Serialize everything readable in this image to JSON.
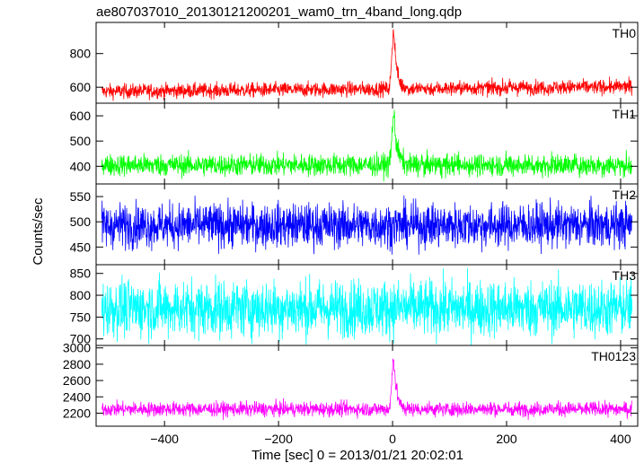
{
  "chart_data": {
    "type": "line",
    "title": "ae807037010_20130121200201_wam0_trn_4band_long.qdp",
    "xlabel": "Time [sec] 0 = 2013/01/21 20:02:01",
    "ylabel": "Counts/sec",
    "xlim": [
      -520,
      430
    ],
    "xticks": [
      -400,
      -200,
      0,
      200,
      400
    ],
    "x_range": [
      -510,
      420
    ],
    "panels": [
      {
        "name": "TH0",
        "color": "#ff0000",
        "ylim": [
          505,
          985
        ],
        "yticks": [
          600,
          800
        ],
        "baseline": 575,
        "noise": 22,
        "trend": 0.03,
        "peak": 990,
        "peak_width": 5
      },
      {
        "name": "TH1",
        "color": "#00ff00",
        "ylim": [
          330,
          650
        ],
        "yticks": [
          400,
          500,
          600
        ],
        "baseline": 405,
        "noise": 22,
        "trend": 0,
        "peak": 640,
        "peak_width": 6
      },
      {
        "name": "TH2",
        "color": "#0000ff",
        "ylim": [
          415,
          575
        ],
        "yticks": [
          450,
          500,
          550
        ],
        "baseline": 493,
        "noise": 22,
        "trend": 0,
        "peak": 0,
        "peak_width": 0
      },
      {
        "name": "TH3",
        "color": "#00ffff",
        "ylim": [
          685,
          870
        ],
        "yticks": [
          700,
          750,
          800,
          850
        ],
        "baseline": 770,
        "noise": 33,
        "trend": 0,
        "peak": 0,
        "peak_width": 0
      },
      {
        "name": "TH0123",
        "color": "#ff00ff",
        "ylim": [
          2040,
          3030
        ],
        "yticks": [
          2200,
          2400,
          2600,
          2800,
          3000
        ],
        "baseline": 2250,
        "noise": 45,
        "trend": 0,
        "peak": 2990,
        "peak_width": 5
      }
    ]
  }
}
